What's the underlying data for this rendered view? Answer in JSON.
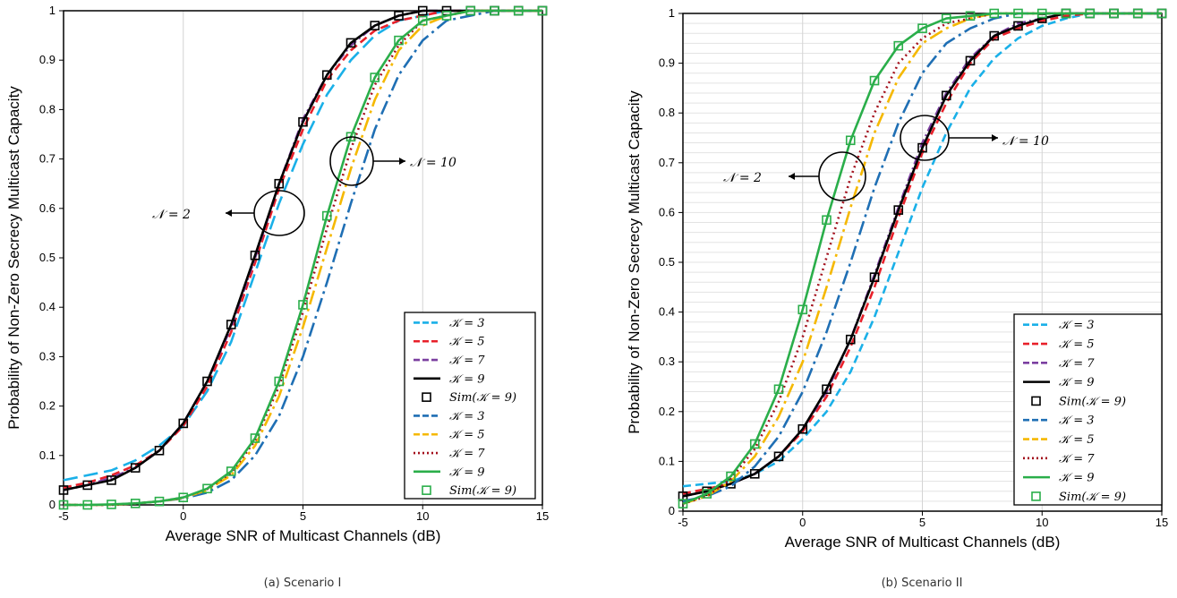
{
  "chart_data": [
    {
      "type": "line",
      "caption": "(a) Scenario I",
      "xlabel": "Average SNR of Multicast Channels (dB)",
      "ylabel": "Probability of Non-Zero Secrecy Multicast Capacity",
      "xlim": [
        -5,
        15
      ],
      "ylim": [
        0,
        1
      ],
      "xticks": [
        -5,
        0,
        5,
        10,
        15
      ],
      "yticks": [
        0,
        0.1,
        0.2,
        0.3,
        0.4,
        0.5,
        0.6,
        0.7,
        0.8,
        0.9,
        1
      ],
      "grid": "vertical",
      "legend_position": "bottom-right",
      "annotations": [
        {
          "text": "𝒩 = 2",
          "x": 3.5,
          "y": 0.59
        },
        {
          "text": "𝒩 = 10",
          "x": 7.1,
          "y": 0.7
        }
      ],
      "series": [
        {
          "name": "𝒦 = 3",
          "color": "#1ab0e8",
          "dash": "long-dash",
          "kind": "line",
          "x": [
            -5,
            -4,
            -3,
            -2,
            -1,
            0,
            1,
            2,
            3,
            4,
            5,
            6,
            7,
            8,
            9,
            10,
            11,
            12,
            13,
            14,
            15
          ],
          "y": [
            0.05,
            0.06,
            0.07,
            0.09,
            0.12,
            0.16,
            0.23,
            0.33,
            0.47,
            0.61,
            0.73,
            0.83,
            0.9,
            0.95,
            0.98,
            0.99,
            1,
            1,
            1,
            1,
            1
          ]
        },
        {
          "name": "𝒦 = 5",
          "color": "#e8202a",
          "dash": "dash",
          "kind": "line",
          "x": [
            -5,
            -4,
            -3,
            -2,
            -1,
            0,
            1,
            2,
            3,
            4,
            5,
            6,
            7,
            8,
            9,
            10,
            11,
            12,
            13,
            14,
            15
          ],
          "y": [
            0.035,
            0.045,
            0.06,
            0.08,
            0.11,
            0.16,
            0.24,
            0.35,
            0.49,
            0.64,
            0.76,
            0.86,
            0.92,
            0.96,
            0.98,
            0.99,
            1,
            1,
            1,
            1,
            1
          ]
        },
        {
          "name": "𝒦 = 7",
          "color": "#7b3fa0",
          "dash": "dash-dot",
          "kind": "line",
          "x": [
            -5,
            -4,
            -3,
            -2,
            -1,
            0,
            1,
            2,
            3,
            4,
            5,
            6,
            7,
            8,
            9,
            10,
            11,
            12,
            13,
            14,
            15
          ],
          "y": [
            0.03,
            0.04,
            0.055,
            0.075,
            0.11,
            0.165,
            0.25,
            0.36,
            0.5,
            0.65,
            0.78,
            0.87,
            0.93,
            0.97,
            0.99,
            1,
            1,
            1,
            1,
            1,
            1
          ]
        },
        {
          "name": "𝒦 = 9",
          "color": "#000000",
          "dash": "solid",
          "kind": "line",
          "x": [
            -5,
            -4,
            -3,
            -2,
            -1,
            0,
            1,
            2,
            3,
            4,
            5,
            6,
            7,
            8,
            9,
            10,
            11,
            12,
            13,
            14,
            15
          ],
          "y": [
            0.03,
            0.04,
            0.05,
            0.075,
            0.11,
            0.165,
            0.25,
            0.365,
            0.505,
            0.65,
            0.775,
            0.87,
            0.935,
            0.97,
            0.99,
            1,
            1,
            1,
            1,
            1,
            1
          ]
        },
        {
          "name": "Sim(𝒦 = 9)",
          "color": "#000000",
          "dash": "none",
          "kind": "marker",
          "x": [
            -5,
            -4,
            -3,
            -2,
            -1,
            0,
            1,
            2,
            3,
            4,
            5,
            6,
            7,
            8,
            9,
            10,
            11,
            12,
            13,
            14,
            15
          ],
          "y": [
            0.03,
            0.04,
            0.05,
            0.075,
            0.11,
            0.165,
            0.25,
            0.365,
            0.505,
            0.65,
            0.775,
            0.87,
            0.935,
            0.97,
            0.99,
            1,
            1,
            1,
            1,
            1,
            1
          ]
        },
        {
          "name": "𝒦 = 3",
          "color": "#1f6fb4",
          "dash": "long-dash-dot",
          "kind": "line",
          "x": [
            -5,
            -4,
            -3,
            -2,
            -1,
            0,
            1,
            2,
            3,
            4,
            5,
            6,
            7,
            8,
            9,
            10,
            11,
            12,
            13,
            14,
            15
          ],
          "y": [
            0,
            0,
            0,
            0.003,
            0.007,
            0.013,
            0.025,
            0.05,
            0.1,
            0.18,
            0.3,
            0.45,
            0.61,
            0.76,
            0.87,
            0.94,
            0.98,
            0.99,
            1,
            1,
            1
          ]
        },
        {
          "name": "𝒦 = 5",
          "color": "#f5b800",
          "dash": "long-dash-dot",
          "kind": "line",
          "x": [
            -5,
            -4,
            -3,
            -2,
            -1,
            0,
            1,
            2,
            3,
            4,
            5,
            6,
            7,
            8,
            9,
            10,
            11,
            12,
            13,
            14,
            15
          ],
          "y": [
            0,
            0,
            0,
            0.003,
            0.007,
            0.014,
            0.03,
            0.06,
            0.12,
            0.22,
            0.36,
            0.52,
            0.68,
            0.82,
            0.92,
            0.97,
            0.99,
            1,
            1,
            1,
            1
          ]
        },
        {
          "name": "𝒦 = 7",
          "color": "#a3101c",
          "dash": "dot",
          "kind": "line",
          "x": [
            -5,
            -4,
            -3,
            -2,
            -1,
            0,
            1,
            2,
            3,
            4,
            5,
            6,
            7,
            8,
            9,
            10,
            11,
            12,
            13,
            14,
            15
          ],
          "y": [
            0,
            0,
            0,
            0.003,
            0.007,
            0.015,
            0.032,
            0.065,
            0.13,
            0.24,
            0.39,
            0.56,
            0.72,
            0.85,
            0.93,
            0.98,
            0.99,
            1,
            1,
            1,
            1
          ]
        },
        {
          "name": "𝒦 = 9",
          "color": "#2aae4a",
          "dash": "solid",
          "kind": "line",
          "x": [
            -5,
            -4,
            -3,
            -2,
            -1,
            0,
            1,
            2,
            3,
            4,
            5,
            6,
            7,
            8,
            9,
            10,
            11,
            12,
            13,
            14,
            15
          ],
          "y": [
            0,
            0,
            0.001,
            0.003,
            0.007,
            0.015,
            0.033,
            0.068,
            0.135,
            0.25,
            0.405,
            0.585,
            0.745,
            0.865,
            0.94,
            0.98,
            0.99,
            1,
            1,
            1,
            1
          ]
        },
        {
          "name": "Sim(𝒦 = 9)",
          "color": "#2aae4a",
          "dash": "none",
          "kind": "marker",
          "x": [
            -5,
            -4,
            -3,
            -2,
            -1,
            0,
            1,
            2,
            3,
            4,
            5,
            6,
            7,
            8,
            9,
            10,
            11,
            12,
            13,
            14,
            15
          ],
          "y": [
            0,
            0,
            0.001,
            0.003,
            0.007,
            0.015,
            0.033,
            0.068,
            0.135,
            0.25,
            0.405,
            0.585,
            0.745,
            0.865,
            0.94,
            0.98,
            0.99,
            1,
            1,
            1,
            1
          ]
        }
      ]
    },
    {
      "type": "line",
      "caption": "(b) Scenario II",
      "xlabel": "Average SNR of Multicast Channels (dB)",
      "ylabel": "Probability of Non-Zero Secrecy Multicast Capacity",
      "xlim": [
        -5,
        15
      ],
      "ylim": [
        0,
        1
      ],
      "xticks": [
        -5,
        0,
        5,
        10,
        15
      ],
      "yticks": [
        0,
        0.1,
        0.2,
        0.3,
        0.4,
        0.5,
        0.6,
        0.7,
        0.8,
        0.9,
        1
      ],
      "grid": "both",
      "legend_position": "bottom-right",
      "annotations": [
        {
          "text": "𝒩 = 2",
          "x": 1.5,
          "y": 0.68
        },
        {
          "text": "𝒩 = 10",
          "x": 5.7,
          "y": 0.76
        }
      ],
      "series": [
        {
          "name": "𝒦 = 3",
          "color": "#1ab0e8",
          "dash": "dash",
          "kind": "line",
          "x": [
            -5,
            -4,
            -3,
            -2,
            -1,
            0,
            1,
            2,
            3,
            4,
            5,
            6,
            7,
            8,
            9,
            10,
            11,
            12,
            13,
            14,
            15
          ],
          "y": [
            0.05,
            0.055,
            0.06,
            0.075,
            0.1,
            0.145,
            0.2,
            0.28,
            0.39,
            0.52,
            0.65,
            0.76,
            0.85,
            0.91,
            0.95,
            0.975,
            0.99,
            1,
            1,
            1,
            1
          ]
        },
        {
          "name": "𝒦 = 5",
          "color": "#e8202a",
          "dash": "dash",
          "kind": "line",
          "x": [
            -5,
            -4,
            -3,
            -2,
            -1,
            0,
            1,
            2,
            3,
            4,
            5,
            6,
            7,
            8,
            9,
            10,
            11,
            12,
            13,
            14,
            15
          ],
          "y": [
            0.035,
            0.045,
            0.055,
            0.075,
            0.11,
            0.16,
            0.23,
            0.33,
            0.45,
            0.59,
            0.72,
            0.82,
            0.9,
            0.95,
            0.97,
            0.985,
            0.995,
            1,
            1,
            1,
            1
          ]
        },
        {
          "name": "𝒦 = 7",
          "color": "#7b3fa0",
          "dash": "dash-dot",
          "kind": "line",
          "x": [
            -5,
            -4,
            -3,
            -2,
            -1,
            0,
            1,
            2,
            3,
            4,
            5,
            6,
            7,
            8,
            9,
            10,
            11,
            12,
            13,
            14,
            15
          ],
          "y": [
            0.03,
            0.04,
            0.055,
            0.075,
            0.11,
            0.165,
            0.24,
            0.345,
            0.475,
            0.61,
            0.74,
            0.84,
            0.91,
            0.955,
            0.98,
            0.99,
            1,
            1,
            1,
            1,
            1
          ]
        },
        {
          "name": "𝒦 = 9",
          "color": "#000000",
          "dash": "solid",
          "kind": "line",
          "x": [
            -5,
            -4,
            -3,
            -2,
            -1,
            0,
            1,
            2,
            3,
            4,
            5,
            6,
            7,
            8,
            9,
            10,
            11,
            12,
            13,
            14,
            15
          ],
          "y": [
            0.03,
            0.04,
            0.055,
            0.075,
            0.11,
            0.165,
            0.245,
            0.345,
            0.47,
            0.605,
            0.73,
            0.835,
            0.905,
            0.955,
            0.975,
            0.99,
            1,
            1,
            1,
            1,
            1
          ]
        },
        {
          "name": "Sim(𝒦 = 9)",
          "color": "#000000",
          "dash": "none",
          "kind": "marker",
          "x": [
            -5,
            -4,
            -3,
            -2,
            -1,
            0,
            1,
            2,
            3,
            4,
            5,
            6,
            7,
            8,
            9,
            10,
            11,
            12,
            13,
            14,
            15
          ],
          "y": [
            0.03,
            0.04,
            0.055,
            0.075,
            0.11,
            0.165,
            0.245,
            0.345,
            0.47,
            0.605,
            0.73,
            0.835,
            0.905,
            0.955,
            0.975,
            0.99,
            1,
            1,
            1,
            1,
            1
          ]
        },
        {
          "name": "𝒦 = 3",
          "color": "#1f6fb4",
          "dash": "long-dash-dot",
          "kind": "line",
          "x": [
            -5,
            -4,
            -3,
            -2,
            -1,
            0,
            1,
            2,
            3,
            4,
            5,
            6,
            7,
            8,
            9,
            10,
            11,
            12,
            13,
            14,
            15
          ],
          "y": [
            0.02,
            0.03,
            0.05,
            0.09,
            0.15,
            0.24,
            0.36,
            0.5,
            0.65,
            0.78,
            0.88,
            0.94,
            0.97,
            0.99,
            1,
            1,
            1,
            1,
            1,
            1,
            1
          ]
        },
        {
          "name": "𝒦 = 5",
          "color": "#f5b800",
          "dash": "long-dash-dot",
          "kind": "line",
          "x": [
            -5,
            -4,
            -3,
            -2,
            -1,
            0,
            1,
            2,
            3,
            4,
            5,
            6,
            7,
            8,
            9,
            10,
            11,
            12,
            13,
            14,
            15
          ],
          "y": [
            0.015,
            0.03,
            0.06,
            0.11,
            0.19,
            0.3,
            0.45,
            0.61,
            0.76,
            0.87,
            0.94,
            0.97,
            0.99,
            1,
            1,
            1,
            1,
            1,
            1,
            1,
            1
          ]
        },
        {
          "name": "𝒦 = 7",
          "color": "#a3101c",
          "dash": "dot",
          "kind": "line",
          "x": [
            -5,
            -4,
            -3,
            -2,
            -1,
            0,
            1,
            2,
            3,
            4,
            5,
            6,
            7,
            8,
            9,
            10,
            11,
            12,
            13,
            14,
            15
          ],
          "y": [
            0.015,
            0.03,
            0.065,
            0.125,
            0.22,
            0.35,
            0.51,
            0.67,
            0.8,
            0.9,
            0.95,
            0.98,
            0.99,
            1,
            1,
            1,
            1,
            1,
            1,
            1,
            1
          ]
        },
        {
          "name": "𝒦 = 9",
          "color": "#2aae4a",
          "dash": "solid",
          "kind": "line",
          "x": [
            -5,
            -4,
            -3,
            -2,
            -1,
            0,
            1,
            2,
            3,
            4,
            5,
            6,
            7,
            8,
            9,
            10,
            11,
            12,
            13,
            14,
            15
          ],
          "y": [
            0.015,
            0.035,
            0.07,
            0.135,
            0.245,
            0.405,
            0.585,
            0.745,
            0.865,
            0.935,
            0.97,
            0.99,
            0.995,
            1,
            1,
            1,
            1,
            1,
            1,
            1,
            1
          ]
        },
        {
          "name": "Sim(𝒦 = 9)",
          "color": "#2aae4a",
          "dash": "none",
          "kind": "marker",
          "x": [
            -5,
            -4,
            -3,
            -2,
            -1,
            0,
            1,
            2,
            3,
            4,
            5,
            6,
            7,
            8,
            9,
            10,
            11,
            12,
            13,
            14,
            15
          ],
          "y": [
            0.015,
            0.035,
            0.07,
            0.135,
            0.245,
            0.405,
            0.585,
            0.745,
            0.865,
            0.935,
            0.97,
            0.99,
            0.995,
            1,
            1,
            1,
            1,
            1,
            1,
            1,
            1
          ]
        }
      ]
    }
  ]
}
